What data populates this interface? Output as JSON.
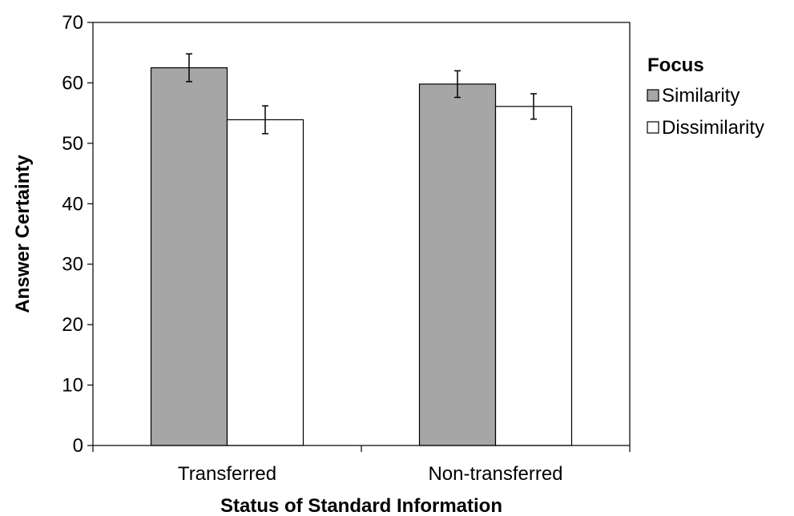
{
  "chart_data": {
    "type": "bar",
    "title": "",
    "xlabel": "Status of Standard Information",
    "ylabel": "Answer Certainty",
    "categories": [
      "Transferred",
      "Non-transferred"
    ],
    "series": [
      {
        "name": "Similarity",
        "values": [
          62.5,
          59.8
        ],
        "errors": [
          2.3,
          2.2
        ],
        "color": "#a6a6a6"
      },
      {
        "name": "Dissimilarity",
        "values": [
          53.9,
          56.1
        ],
        "errors": [
          2.3,
          2.1
        ],
        "color": "#ffffff"
      }
    ],
    "ylim": [
      0,
      70
    ],
    "yticks": [
      "0",
      "10",
      "20",
      "30",
      "40",
      "50",
      "60",
      "70"
    ],
    "grid": false,
    "legend": {
      "title": "Focus",
      "position": "right"
    }
  }
}
